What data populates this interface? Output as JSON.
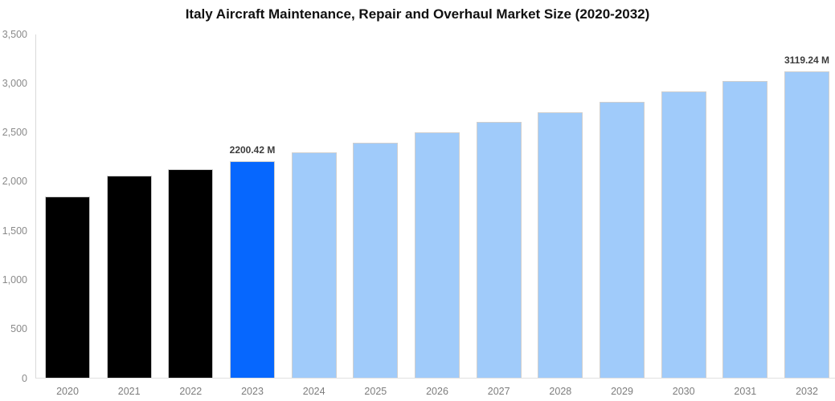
{
  "chart_data": {
    "type": "bar",
    "title": "Italy Aircraft Maintenance, Repair and Overhaul Market Size (2020-2032)",
    "xlabel": "",
    "ylabel": "",
    "unit": "M",
    "categories": [
      "2020",
      "2021",
      "2022",
      "2023",
      "2024",
      "2025",
      "2026",
      "2027",
      "2028",
      "2029",
      "2030",
      "2031",
      "2032"
    ],
    "values": [
      1840,
      2055,
      2125,
      2200.42,
      2290,
      2390,
      2495,
      2600,
      2700,
      2805,
      2910,
      3015,
      3119.24
    ],
    "bar_colors": [
      "#000000",
      "#000000",
      "#000000",
      "#0667fe",
      "#a0cbfa",
      "#a0cbfa",
      "#a0cbfa",
      "#a0cbfa",
      "#a0cbfa",
      "#a0cbfa",
      "#a0cbfa",
      "#a0cbfa",
      "#a0cbfa"
    ],
    "color_legend": {
      "historical": "#000000",
      "base_year": "#0667fe",
      "forecast": "#a0cbfa"
    },
    "ylim": [
      0,
      3500
    ],
    "ytick_values": [
      0,
      500,
      1000,
      1500,
      2000,
      2500,
      3000,
      3500
    ],
    "ytick_labels": [
      "0",
      "500",
      "1,000",
      "1,500",
      "2,000",
      "2,500",
      "3,000",
      "3,500"
    ],
    "grid": false,
    "legend_position": "none",
    "annotations": [
      {
        "category": "2023",
        "text": "2200.42 M"
      },
      {
        "category": "2032",
        "text": "3119.24 M"
      }
    ]
  }
}
